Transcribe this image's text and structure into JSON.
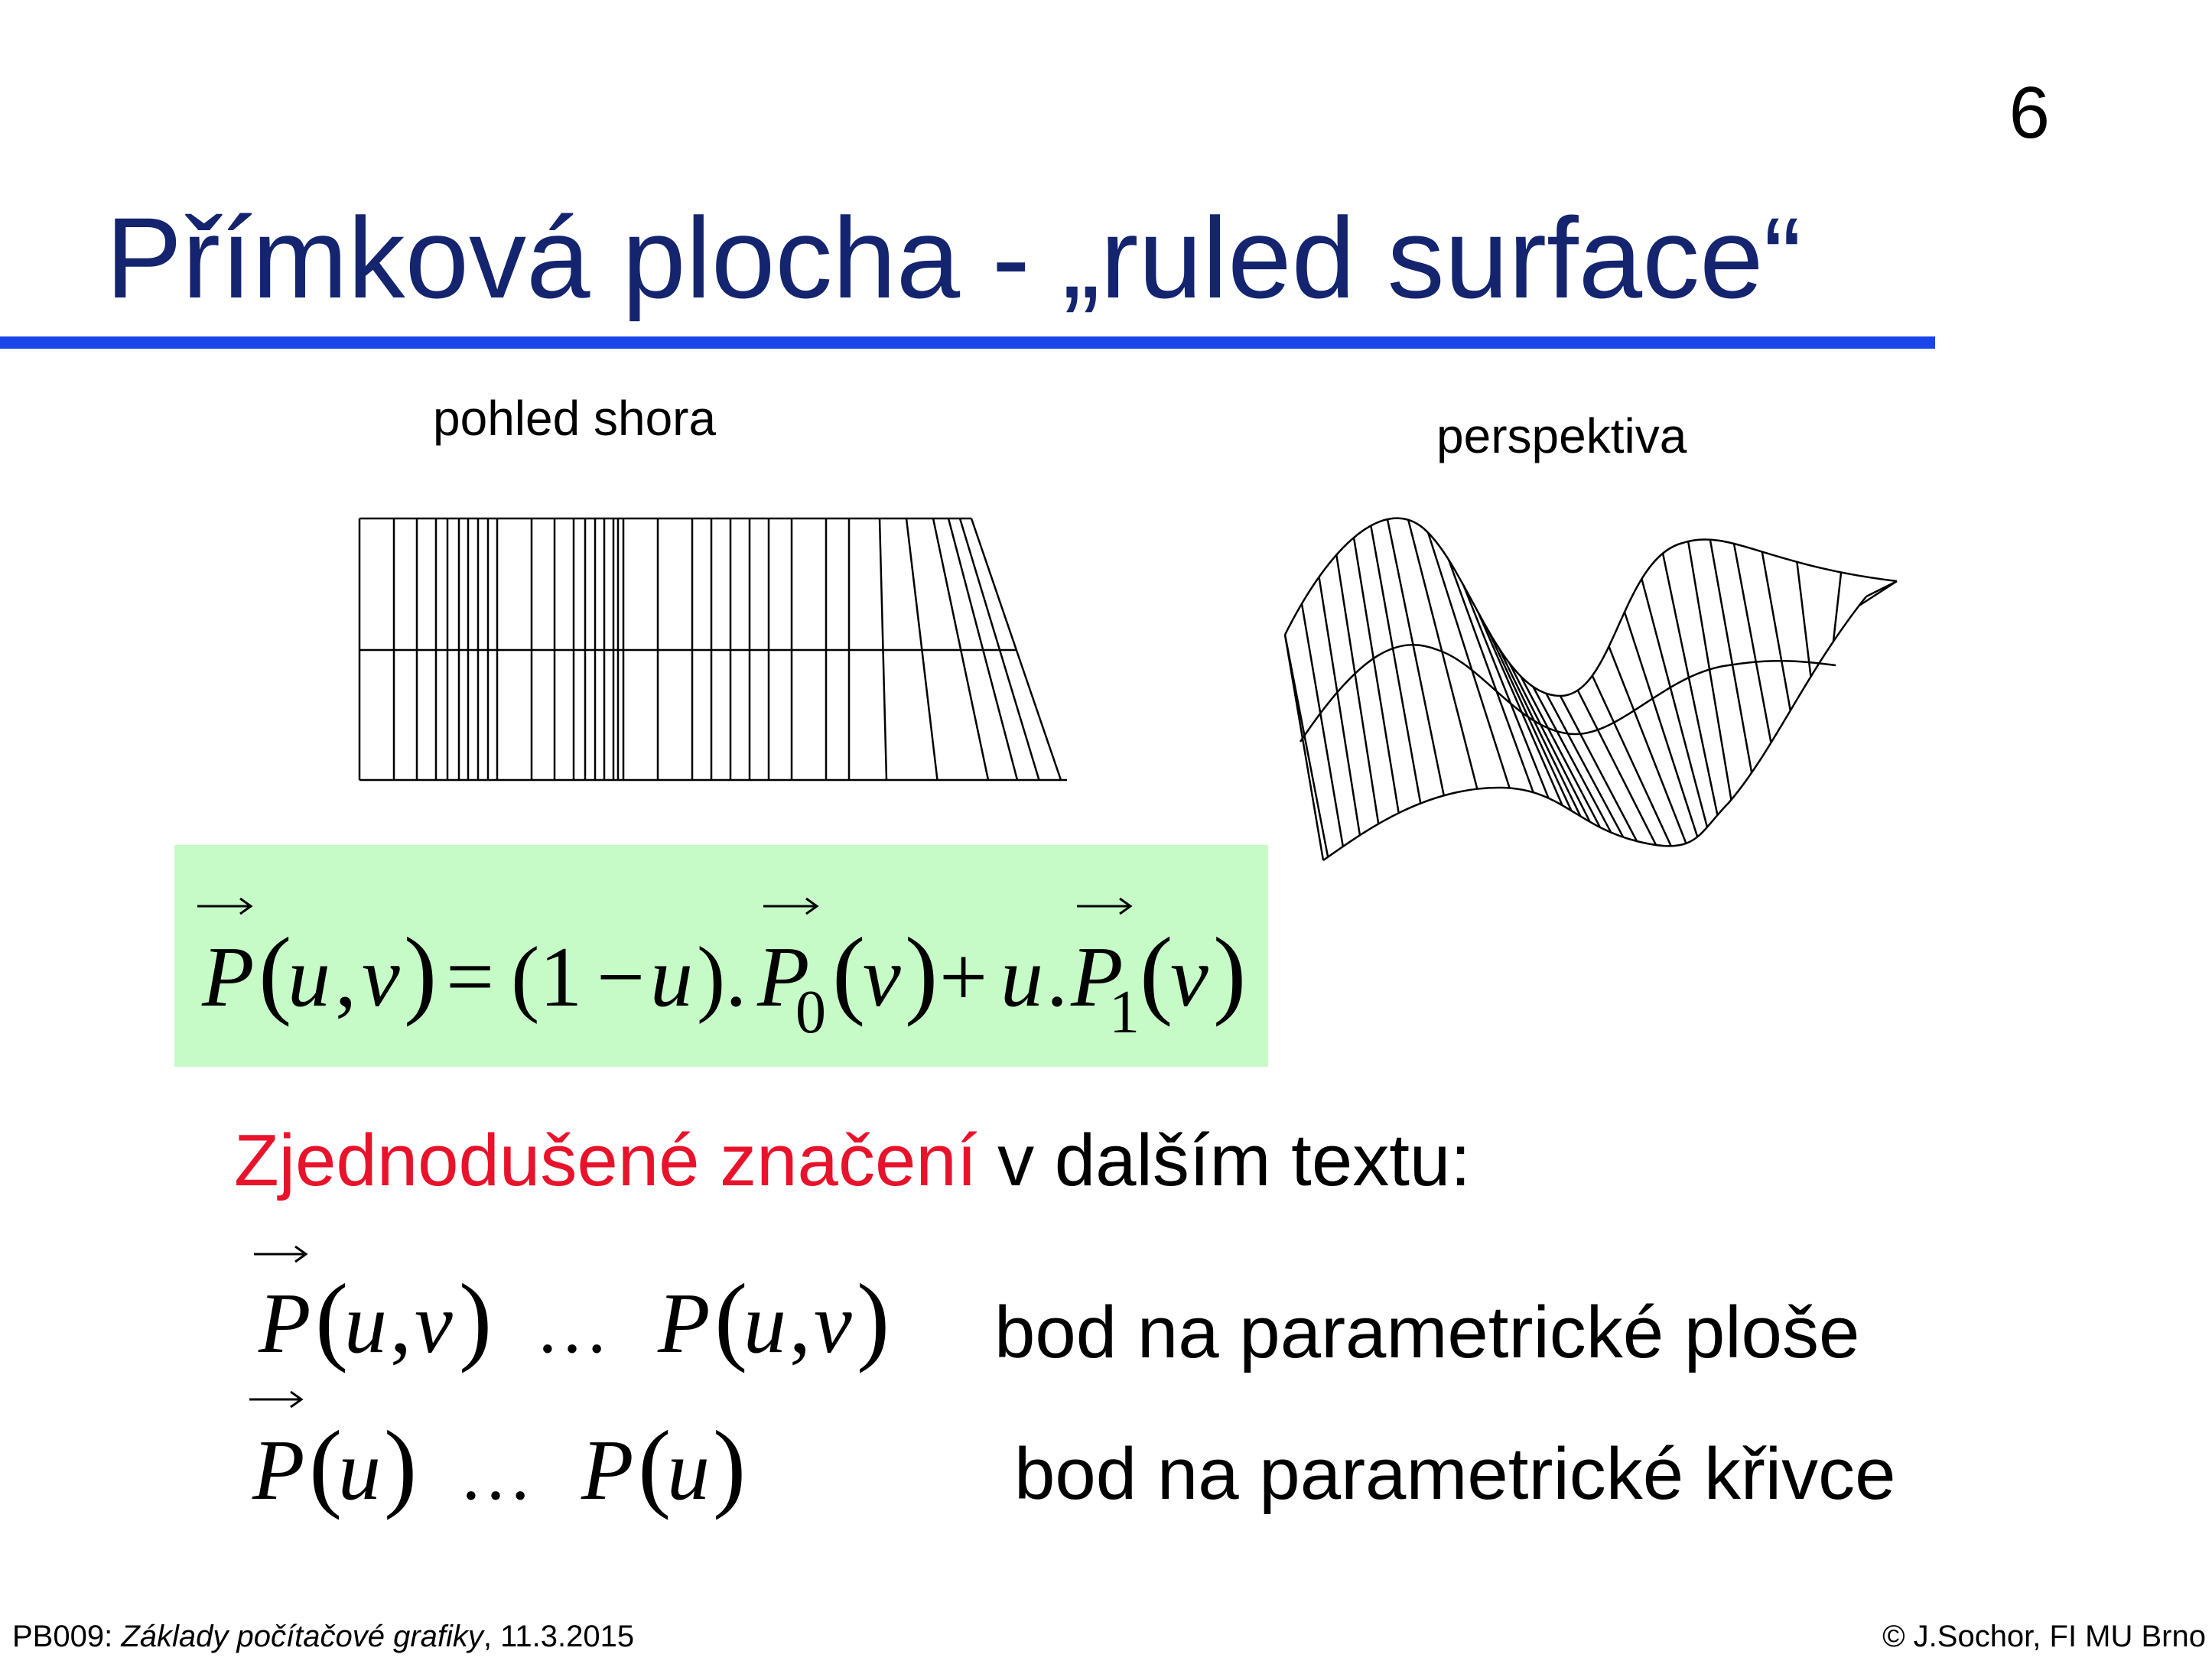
{
  "page_number": "6",
  "title": "Přímková plocha - „ruled surface“",
  "figures": {
    "top_view_caption": "pohled shora",
    "perspective_caption": "perspektiva"
  },
  "formula": {
    "main": "P(u,v) = (1−u).P0(v) + u.P1(v)"
  },
  "note": {
    "highlight": "Zjednodušené značení",
    "rest": " v dalším textu:"
  },
  "notation": [
    {
      "lhs": "P(u,v)",
      "dots": "…",
      "rhs": "P(u,v)",
      "description": "bod na parametrické ploše"
    },
    {
      "lhs": "P(u)",
      "dots": "…",
      "rhs": "P(u)",
      "description": "bod na parametrické křivce"
    }
  ],
  "footer": {
    "course": "PB009: ",
    "course_title": "Základy počítačové grafiky",
    "date": ", 11.3.2015",
    "copyright": "© J.Sochor, FI MU Brno"
  },
  "colors": {
    "title": "#14246e",
    "rule": "#1a45e8",
    "formula_bg": "#c6fbc8",
    "highlight": "#e8132b"
  }
}
